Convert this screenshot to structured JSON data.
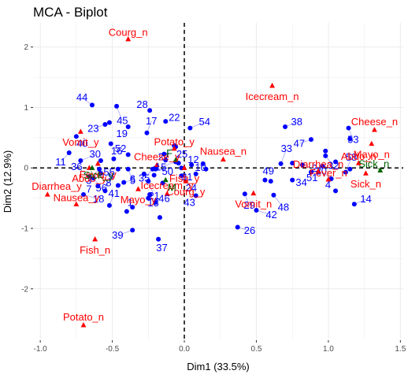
{
  "chart_data": {
    "type": "scatter",
    "title": "MCA - Biplot",
    "xlabel": "Dim1 (33.5%)",
    "ylabel": "Dim2 (12.9%)",
    "xlim": [
      -1.05,
      1.52
    ],
    "ylim": [
      -2.85,
      2.4
    ],
    "x_ticks": [
      -1.0,
      -0.5,
      0.0,
      0.5,
      1.0,
      1.5
    ],
    "x_tick_labels": [
      "-1.0",
      "-0.5",
      "0.0",
      "0.5",
      "1.0",
      "1.5"
    ],
    "y_ticks": [
      -2,
      -1,
      0,
      1,
      2
    ],
    "y_tick_labels": [
      "-2",
      "-1",
      "0",
      "1",
      "2"
    ],
    "grid": true,
    "reference_lines": {
      "x": 0,
      "y": 0,
      "style": "dashed"
    },
    "colors": {
      "individuals": "#0000ff",
      "variables": "#ff0000",
      "supplementary": "#006400",
      "connector": "#8888ff",
      "grid": "#ebebeb"
    },
    "individuals": [
      {
        "label": "1",
        "x": -0.4,
        "y": -0.72
      },
      {
        "label": "2",
        "x": 0.82,
        "y": 0.05
      },
      {
        "label": "3",
        "x": -0.59,
        "y": -0.02
      },
      {
        "label": "4",
        "x": 1.05,
        "y": -0.38
      },
      {
        "label": "5",
        "x": -0.39,
        "y": -0.02
      },
      {
        "label": "6",
        "x": -0.46,
        "y": -0.29
      },
      {
        "label": "7",
        "x": -0.6,
        "y": -0.3
      },
      {
        "label": "8",
        "x": -0.58,
        "y": -0.09
      },
      {
        "label": "9",
        "x": -0.55,
        "y": -0.38
      },
      {
        "label": "10",
        "x": 0.05,
        "y": 0.05
      },
      {
        "label": "11",
        "x": -0.8,
        "y": 0.25
      },
      {
        "label": "12",
        "x": 0.15,
        "y": -0.02
      },
      {
        "label": "13",
        "x": -0.24,
        "y": -0.44
      },
      {
        "label": "14",
        "x": 1.18,
        "y": -0.6
      },
      {
        "label": "15",
        "x": -0.06,
        "y": 0.1
      },
      {
        "label": "16",
        "x": -0.51,
        "y": 0.4
      },
      {
        "label": "17",
        "x": -0.26,
        "y": 0.58
      },
      {
        "label": "18",
        "x": -0.7,
        "y": -0.44
      },
      {
        "label": "19",
        "x": -0.39,
        "y": 0.68
      },
      {
        "label": "20",
        "x": 1.02,
        "y": -0.18
      },
      {
        "label": "21",
        "x": -0.25,
        "y": -0.22
      },
      {
        "label": "22",
        "x": -0.13,
        "y": 0.77
      },
      {
        "label": "23",
        "x": -0.55,
        "y": 0.72
      },
      {
        "label": "24",
        "x": -0.02,
        "y": -0.13
      },
      {
        "label": "25",
        "x": -0.04,
        "y": 0.08
      },
      {
        "label": "26",
        "x": 0.37,
        "y": -0.98
      },
      {
        "label": "27",
        "x": -0.07,
        "y": 0.37
      },
      {
        "label": "28",
        "x": -0.24,
        "y": 0.95
      },
      {
        "label": "29",
        "x": 0.42,
        "y": -0.43
      },
      {
        "label": "30",
        "x": -0.72,
        "y": 0.12
      },
      {
        "label": "31",
        "x": 0.08,
        "y": -0.1
      },
      {
        "label": "32",
        "x": 0.98,
        "y": 0.2
      },
      {
        "label": "33",
        "x": 0.67,
        "y": 0.07
      },
      {
        "label": "34",
        "x": 0.75,
        "y": -0.2
      },
      {
        "label": "35",
        "x": -0.22,
        "y": -0.02
      },
      {
        "label": "36",
        "x": -0.66,
        "y": -0.14
      },
      {
        "label": "37",
        "x": -0.18,
        "y": -1.18
      },
      {
        "label": "38",
        "x": 0.7,
        "y": 0.68
      },
      {
        "label": "39",
        "x": -0.36,
        "y": -1.03
      },
      {
        "label": "40",
        "x": -0.75,
        "y": 0.52
      },
      {
        "label": "41",
        "x": -0.52,
        "y": -0.62
      },
      {
        "label": "42",
        "x": 0.5,
        "y": -0.7
      },
      {
        "label": "43",
        "x": 0.08,
        "y": -0.46
      },
      {
        "label": "44",
        "x": -0.64,
        "y": 1.04
      },
      {
        "label": "45",
        "x": -0.47,
        "y": 1.02
      },
      {
        "label": "46",
        "x": -0.2,
        "y": -0.57
      },
      {
        "label": "47",
        "x": 0.88,
        "y": 0.47
      },
      {
        "label": "48",
        "x": 0.62,
        "y": -0.45
      },
      {
        "label": "49",
        "x": 0.56,
        "y": -0.2
      },
      {
        "label": "50",
        "x": -0.2,
        "y": 0.0
      },
      {
        "label": "51",
        "x": 0.96,
        "y": 0.03
      },
      {
        "label": "52",
        "x": -0.39,
        "y": 0.22
      },
      {
        "label": "53",
        "x": 1.14,
        "y": 0.66
      },
      {
        "label": "54",
        "x": 0.04,
        "y": 0.66
      },
      {
        "label": "55",
        "x": -0.46,
        "y": -0.02
      },
      {
        "label": "56",
        "x": -0.63,
        "y": -0.17
      },
      {
        "label": "58",
        "x": 1.12,
        "y": -0.07
      }
    ],
    "individual_markers": [
      {
        "x": -0.58,
        "y": 0.12
      },
      {
        "x": -0.52,
        "y": 0.75
      },
      {
        "x": -0.49,
        "y": 0.15
      },
      {
        "x": -0.42,
        "y": -0.24
      },
      {
        "x": -0.36,
        "y": -0.65
      },
      {
        "x": -0.28,
        "y": -0.1
      },
      {
        "x": -0.25,
        "y": -0.5
      },
      {
        "x": -0.21,
        "y": -0.12
      },
      {
        "x": -0.2,
        "y": -0.02
      },
      {
        "x": -0.17,
        "y": -0.82
      },
      {
        "x": -0.15,
        "y": -0.25
      },
      {
        "x": -0.14,
        "y": 0.23
      },
      {
        "x": -0.13,
        "y": 0.13
      },
      {
        "x": -0.06,
        "y": 0.35
      },
      {
        "x": -0.02,
        "y": 0.0
      },
      {
        "x": 0.13,
        "y": 0.07
      },
      {
        "x": 0.6,
        "y": -0.22
      },
      {
        "x": 0.75,
        "y": 0.08
      },
      {
        "x": 0.88,
        "y": -0.07
      },
      {
        "x": 0.98,
        "y": 0.28
      },
      {
        "x": 1.05,
        "y": 0.1
      },
      {
        "x": 1.15,
        "y": 0.48
      },
      {
        "x": 1.15,
        "y": -0.02
      }
    ],
    "variables": [
      {
        "label": "Courg_n",
        "x": -0.39,
        "y": 2.13
      },
      {
        "label": "Icecream_n",
        "x": 0.61,
        "y": 1.36
      },
      {
        "label": "Cheese_n",
        "x": 1.32,
        "y": 0.63
      },
      {
        "label": "Vomit_y",
        "x": -0.72,
        "y": 0.6
      },
      {
        "label": "Potato_y",
        "x": -0.07,
        "y": 0.32
      },
      {
        "label": "Mayo_n",
        "x": 1.3,
        "y": 0.4
      },
      {
        "label": "Nausea_n",
        "x": 0.27,
        "y": 0.14
      },
      {
        "label": "Fever_y",
        "x": -0.6,
        "y": 0.07
      },
      {
        "label": "Abdo_n",
        "x": 1.21,
        "y": 0.08
      },
      {
        "label": "Abdo_y",
        "x": -0.66,
        "y": 0.0
      },
      {
        "label": "Cheese_y",
        "x": -0.19,
        "y": 0.05
      },
      {
        "label": "Fish_y",
        "x": 0.0,
        "y": 0.0
      },
      {
        "label": "Diarrhea_n",
        "x": 0.93,
        "y": -0.05
      },
      {
        "label": "Sick_n",
        "x": 1.26,
        "y": -0.09
      },
      {
        "label": "Diarrhea_y",
        "x": -0.95,
        "y": -0.44
      },
      {
        "label": "Courg_y",
        "x": 0.01,
        "y": -0.22
      },
      {
        "label": "Fever_n",
        "x": 1.0,
        "y": -0.19
      },
      {
        "label": "Mayo_y",
        "x": -0.32,
        "y": -0.35
      },
      {
        "label": "Icecream_y",
        "x": -0.12,
        "y": -0.43
      },
      {
        "label": "Vomit_n",
        "x": 0.48,
        "y": -0.42
      },
      {
        "label": "Nausea_y",
        "x": -0.75,
        "y": -0.6
      },
      {
        "label": "Fish_n",
        "x": -0.62,
        "y": -1.18
      },
      {
        "label": "Potato_n",
        "x": -0.7,
        "y": -2.6
      }
    ],
    "supplementary": [
      {
        "label": "Sick_y",
        "x": -0.64,
        "y": 0.0
      },
      {
        "label": "F",
        "x": -0.06,
        "y": 0.13
      },
      {
        "label": "M",
        "x": -0.13,
        "y": -0.2
      },
      {
        "label": "Sick_n",
        "x": 1.36,
        "y": -0.04
      }
    ]
  }
}
